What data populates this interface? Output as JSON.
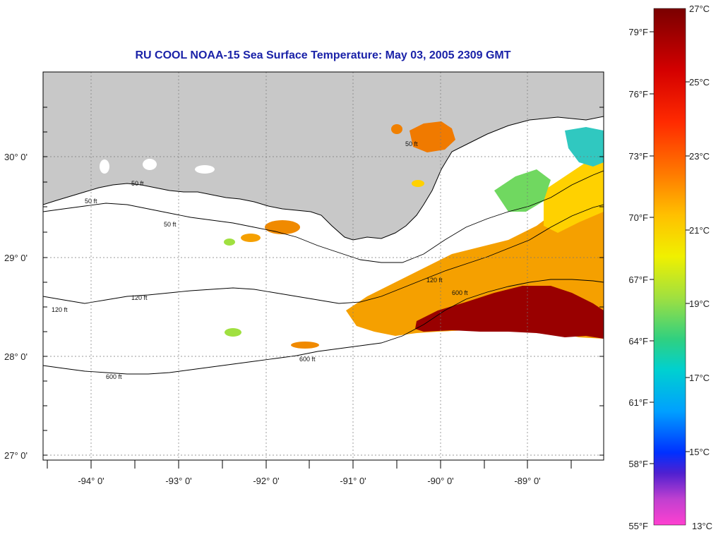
{
  "title": "RU COOL  NOAA-15  Sea Surface Temperature:  May 03, 2005 2309 GMT",
  "lat_labels": [
    "30° 0'",
    "29° 0'",
    "28° 0'",
    "27° 0'"
  ],
  "lon_labels": [
    "-94° 0'",
    "-93° 0'",
    "-92° 0'",
    "-91° 0'",
    "-90° 0'",
    "-89° 0'"
  ],
  "contour_labels": [
    "50 ft",
    "120 ft",
    "600 ft"
  ],
  "colorbar": {
    "fahrenheit": [
      "79°F",
      "76°F",
      "73°F",
      "70°F",
      "67°F",
      "64°F",
      "61°F",
      "58°F",
      "55°F"
    ],
    "celsius": [
      "27°C",
      "25°C",
      "23°C",
      "21°C",
      "19°C",
      "17°C",
      "15°C",
      "13°C"
    ]
  },
  "colors": {
    "land": "#c8c8c8",
    "ocean_nodata": "#ffffff",
    "title": "#1a22a8"
  }
}
